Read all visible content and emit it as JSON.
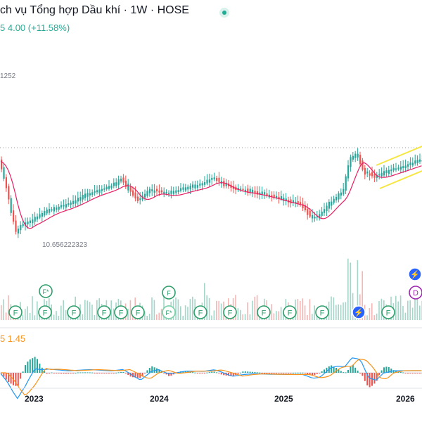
{
  "header": {
    "title": "ch vụ Tổng hợp Dầu khí · 1W · HOSE",
    "change_prefix": "5",
    "change_value": "4.00 (+11.58%)"
  },
  "price_labels": {
    "top_left": "1252",
    "low_marker": "10.656222323"
  },
  "macd": {
    "prefix": "5",
    "value": "1.45"
  },
  "events": {
    "financial_letter": "F",
    "financial_star": "F*",
    "dividend_letter": "D"
  },
  "x_axis": {
    "years": [
      "2023",
      "2024",
      "2025",
      "2026"
    ]
  },
  "colors": {
    "up": "#26a69a",
    "down": "#ef5350",
    "ma": "#e91e63",
    "channel": "#ffeb3b",
    "signal": "#f7931a",
    "macd_line": "#2962ff"
  }
}
